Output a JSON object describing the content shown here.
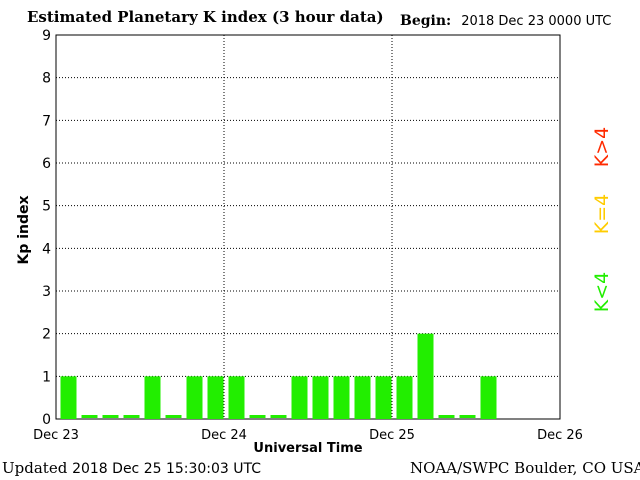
{
  "header": {
    "title": "Estimated Planetary K index (3 hour data)",
    "begin_label": "Begin:",
    "begin_value": "2018 Dec 23 0000 UTC"
  },
  "footer": {
    "updated_label": "Updated",
    "updated_value": "2018 Dec 25 15:30:03 UTC",
    "credit": "NOAA/SWPC Boulder, CO USA"
  },
  "legend": [
    {
      "label": "K>4",
      "color": "#ff2a00"
    },
    {
      "label": "K=4",
      "color": "#ffcc00"
    },
    {
      "label": "K<4",
      "color": "#22ee00"
    }
  ],
  "chart_data": {
    "type": "bar",
    "ylabel": "Kp index",
    "xlabel": "Universal Time",
    "ylim": [
      0,
      9
    ],
    "yticks": [
      0,
      1,
      2,
      3,
      4,
      5,
      6,
      7,
      8,
      9
    ],
    "x_tick_labels": [
      "Dec 23",
      "Dec 24",
      "Dec 25",
      "Dec 26"
    ],
    "bar_color": "#22ee00",
    "interval_hours": 3,
    "grid": "dotted, at day boundaries and integer Kp",
    "values": [
      1,
      0,
      0,
      0,
      1,
      0,
      1,
      1,
      1,
      0,
      0,
      1,
      1,
      1,
      1,
      1,
      1,
      2,
      0,
      0,
      1
    ]
  }
}
